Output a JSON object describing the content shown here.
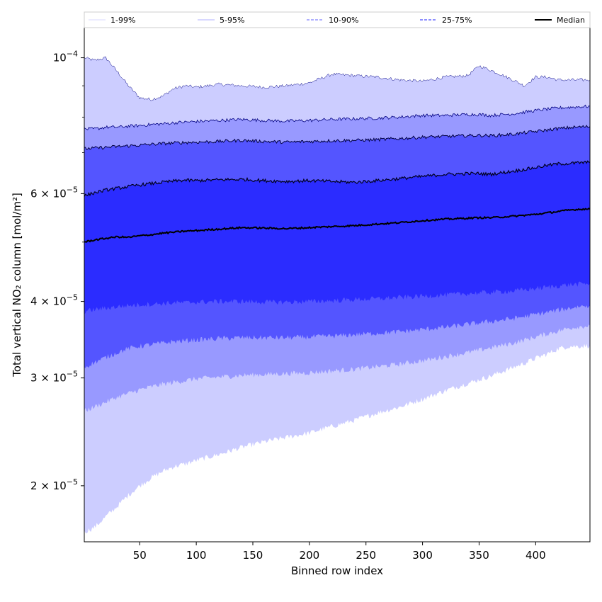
{
  "chart_data": {
    "type": "area",
    "xlabel": "Binned row index",
    "ylabel": "Total vertical NO₂ column [mol/m²]",
    "yscale": "log",
    "xlim": [
      1,
      448
    ],
    "ylim": [
      1.62e-05,
      0.000112
    ],
    "x_ticks": [
      50,
      100,
      150,
      200,
      250,
      300,
      350,
      400
    ],
    "x_tick_labels": [
      "50",
      "100",
      "150",
      "200",
      "250",
      "300",
      "350",
      "400"
    ],
    "y_ticks": [
      {
        "value": 2e-05,
        "mantissa": "2",
        "exp": "−5"
      },
      {
        "value": 3e-05,
        "mantissa": "3",
        "exp": "−5"
      },
      {
        "value": 4e-05,
        "mantissa": "4",
        "exp": "−5"
      },
      {
        "value": 6e-05,
        "mantissa": "6",
        "exp": "−5"
      },
      {
        "value": 0.0001,
        "mantissa": "",
        "exp": "−4"
      }
    ],
    "y_minor_ticks": [
      5e-05,
      7e-05,
      8e-05,
      9e-05
    ],
    "x": [
      1,
      10,
      20,
      30,
      40,
      50,
      60,
      70,
      80,
      90,
      100,
      120,
      140,
      160,
      180,
      200,
      220,
      240,
      260,
      280,
      300,
      320,
      340,
      350,
      360,
      380,
      390,
      400,
      410,
      420,
      430,
      440,
      448
    ],
    "bands": [
      {
        "name": "1-99%",
        "color": "#cccdff",
        "line_color": "#000080",
        "line_style": "solid",
        "line_width": 0.5,
        "lower": [
          1.68e-05,
          1.71e-05,
          1.78e-05,
          1.85e-05,
          1.93e-05,
          2e-05,
          2.06e-05,
          2.11e-05,
          2.15e-05,
          2.17e-05,
          2.2e-05,
          2.25e-05,
          2.31e-05,
          2.36e-05,
          2.4e-05,
          2.44e-05,
          2.5e-05,
          2.56e-05,
          2.63e-05,
          2.69e-05,
          2.77e-05,
          2.86e-05,
          2.94e-05,
          2.98e-05,
          3.02e-05,
          3.12e-05,
          3.17e-05,
          3.23e-05,
          3.28e-05,
          3.35e-05,
          3.38e-05,
          3.38e-05,
          3.39e-05
        ],
        "upper": [
          0.0001,
          9.9e-05,
          0.0001,
          9.5e-05,
          9e-05,
          8.6e-05,
          8.55e-05,
          8.65e-05,
          8.9e-05,
          9e-05,
          8.95e-05,
          9.05e-05,
          9e-05,
          8.95e-05,
          9e-05,
          9.1e-05,
          9.4e-05,
          9.35e-05,
          9.3e-05,
          9.2e-05,
          9.15e-05,
          9.3e-05,
          9.35e-05,
          9.7e-05,
          9.55e-05,
          9.2e-05,
          9e-05,
          9.3e-05,
          9.3e-05,
          9.2e-05,
          9.2e-05,
          9.2e-05,
          9.2e-05
        ]
      },
      {
        "name": "5-95%",
        "color": "#9899ff",
        "line_color": "#000080",
        "line_style": "solid",
        "line_width": 0.8,
        "lower": [
          2.65e-05,
          2.69e-05,
          2.74e-05,
          2.79e-05,
          2.83e-05,
          2.87e-05,
          2.9e-05,
          2.93e-05,
          2.95e-05,
          2.97e-05,
          2.99e-05,
          3.01e-05,
          3.03e-05,
          3.04e-05,
          3.05e-05,
          3.06e-05,
          3.08e-05,
          3.1e-05,
          3.13e-05,
          3.16e-05,
          3.2e-05,
          3.25e-05,
          3.3e-05,
          3.33e-05,
          3.36e-05,
          3.42e-05,
          3.46e-05,
          3.5e-05,
          3.54e-05,
          3.58e-05,
          3.62e-05,
          3.64e-05,
          3.65e-05
        ],
        "upper": [
          7.65e-05,
          7.65e-05,
          7.7e-05,
          7.7e-05,
          7.73e-05,
          7.75e-05,
          7.78e-05,
          7.8e-05,
          7.83e-05,
          7.85e-05,
          7.87e-05,
          7.9e-05,
          7.93e-05,
          7.9e-05,
          7.88e-05,
          7.9e-05,
          7.93e-05,
          7.95e-05,
          7.97e-05,
          8e-05,
          8.05e-05,
          8.05e-05,
          8.08e-05,
          8.08e-05,
          8.05e-05,
          8.1e-05,
          8.15e-05,
          8.2e-05,
          8.24e-05,
          8.28e-05,
          8.3e-05,
          8.32e-05,
          8.33e-05
        ]
      },
      {
        "name": "10-90%",
        "color": "#5455ff",
        "line_color": "#000040",
        "line_style": "solid",
        "line_width": 1.0,
        "lower": [
          3.12e-05,
          3.18e-05,
          3.24e-05,
          3.3e-05,
          3.35e-05,
          3.38e-05,
          3.4e-05,
          3.42e-05,
          3.44e-05,
          3.45e-05,
          3.46e-05,
          3.48e-05,
          3.49e-05,
          3.49e-05,
          3.49e-05,
          3.5e-05,
          3.51e-05,
          3.53e-05,
          3.55e-05,
          3.57e-05,
          3.6e-05,
          3.63e-05,
          3.67e-05,
          3.69e-05,
          3.71e-05,
          3.75e-05,
          3.78e-05,
          3.81e-05,
          3.84e-05,
          3.87e-05,
          3.9e-05,
          3.93e-05,
          3.94e-05
        ],
        "upper": [
          7.1e-05,
          7.12e-05,
          7.14e-05,
          7.16e-05,
          7.18e-05,
          7.2e-05,
          7.22e-05,
          7.24e-05,
          7.26e-05,
          7.27e-05,
          7.28e-05,
          7.3e-05,
          7.33e-05,
          7.3e-05,
          7.28e-05,
          7.3e-05,
          7.32e-05,
          7.33e-05,
          7.35e-05,
          7.38e-05,
          7.42e-05,
          7.44e-05,
          7.46e-05,
          7.47e-05,
          7.46e-05,
          7.5e-05,
          7.54e-05,
          7.58e-05,
          7.62e-05,
          7.66e-05,
          7.69e-05,
          7.71e-05,
          7.72e-05
        ]
      },
      {
        "name": "25-75%",
        "color": "#2b2cff",
        "line_color": "#000020",
        "line_style": "solid",
        "line_width": 1.2,
        "lower": [
          3.85e-05,
          3.88e-05,
          3.9e-05,
          3.92e-05,
          3.94e-05,
          3.95e-05,
          3.96e-05,
          3.97e-05,
          3.98e-05,
          3.98e-05,
          3.99e-05,
          4e-05,
          4e-05,
          3.99e-05,
          3.99e-05,
          4e-05,
          4.01e-05,
          4.03e-05,
          4.04e-05,
          4.06e-05,
          4.08e-05,
          4.1e-05,
          4.12e-05,
          4.13e-05,
          4.14e-05,
          4.16e-05,
          4.18e-05,
          4.2e-05,
          4.22e-05,
          4.24e-05,
          4.26e-05,
          4.27e-05,
          4.28e-05
        ],
        "upper": [
          5.95e-05,
          6.02e-05,
          6.08e-05,
          6.12e-05,
          6.16e-05,
          6.2e-05,
          6.23e-05,
          6.26e-05,
          6.29e-05,
          6.31e-05,
          6.3e-05,
          6.32e-05,
          6.33e-05,
          6.3e-05,
          6.28e-05,
          6.3e-05,
          6.28e-05,
          6.26e-05,
          6.3e-05,
          6.35e-05,
          6.4e-05,
          6.45e-05,
          6.47e-05,
          6.47e-05,
          6.45e-05,
          6.53e-05,
          6.57e-05,
          6.62e-05,
          6.67e-05,
          6.71e-05,
          6.72e-05,
          6.74e-05,
          6.75e-05
        ]
      }
    ],
    "median": {
      "name": "Median",
      "color": "#000000",
      "values": [
        5e-05,
        5.04e-05,
        5.07e-05,
        5.1e-05,
        5.09e-05,
        5.12e-05,
        5.14e-05,
        5.17e-05,
        5.19e-05,
        5.21e-05,
        5.22e-05,
        5.25e-05,
        5.28e-05,
        5.27e-05,
        5.26e-05,
        5.28e-05,
        5.3e-05,
        5.32e-05,
        5.35e-05,
        5.38e-05,
        5.42e-05,
        5.45e-05,
        5.47e-05,
        5.48e-05,
        5.48e-05,
        5.51e-05,
        5.53e-05,
        5.55e-05,
        5.58e-05,
        5.61e-05,
        5.64e-05,
        5.66e-05,
        5.66e-05
      ]
    },
    "legend": {
      "placement": "top",
      "entries": [
        {
          "label": "1-99%",
          "color": "#cccdff",
          "style": "solid"
        },
        {
          "label": "5-95%",
          "color": "#9899ff",
          "style": "solid"
        },
        {
          "label": "10-90%",
          "color": "#7f80ff",
          "style": "dashed"
        },
        {
          "label": "25-75%",
          "color": "#4b4cff",
          "style": "dashed"
        },
        {
          "label": "Median",
          "color": "#000000",
          "style": "solid"
        }
      ]
    }
  }
}
